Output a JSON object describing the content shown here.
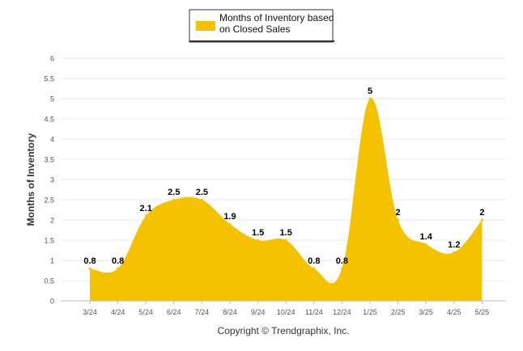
{
  "chart_data": {
    "type": "area",
    "legend": {
      "entries": [
        "Months of Inventory based on Closed Sales"
      ],
      "placement": "top-center"
    },
    "ylabel": "Months of Inventory",
    "ylim": [
      0,
      6
    ],
    "ytick_step": 0.5,
    "y_ticks": [
      "0",
      "0.5",
      "1",
      "1.5",
      "2",
      "2.5",
      "3",
      "3.5",
      "4",
      "4.5",
      "5",
      "5.5",
      "6"
    ],
    "categories": [
      "3/24",
      "4/24",
      "5/24",
      "6/24",
      "7/24",
      "8/24",
      "9/24",
      "10/24",
      "11/24",
      "12/24",
      "1/25",
      "2/25",
      "3/25",
      "4/25",
      "5/25"
    ],
    "series": [
      {
        "name": "Months of Inventory based on Closed Sales",
        "color": "#f5c200",
        "values": [
          0.8,
          0.8,
          2.1,
          2.5,
          2.5,
          1.9,
          1.5,
          1.5,
          0.8,
          0.8,
          5,
          2,
          1.4,
          1.2,
          2
        ],
        "data_labels": [
          "0.8",
          "0.8",
          "2.1",
          "2.5",
          "2.5",
          "1.9",
          "1.5",
          "1.5",
          "0.8",
          "0.8",
          "5",
          "2",
          "1.4",
          "1.2",
          "2"
        ]
      }
    ],
    "grid": true,
    "copyright": "Copyright © Trendgraphix, Inc."
  }
}
